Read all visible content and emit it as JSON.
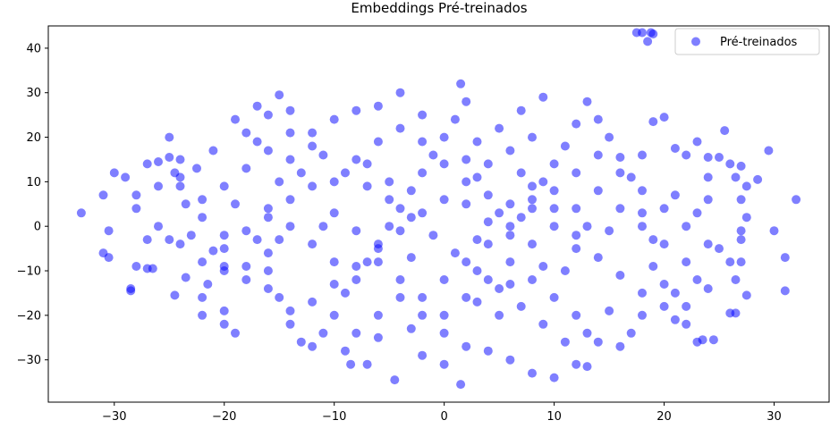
{
  "chart_data": {
    "type": "scatter",
    "title": "Embeddings Pré-treinados",
    "xlabel": "",
    "ylabel": "",
    "xlim": [
      -36,
      35
    ],
    "ylim": [
      -39.5,
      45
    ],
    "xticks": [
      -30,
      -20,
      -10,
      0,
      10,
      20,
      30
    ],
    "yticks": [
      -30,
      -20,
      -10,
      0,
      10,
      20,
      30,
      40
    ],
    "xtick_labels": [
      "−30",
      "−20",
      "−10",
      "0",
      "10",
      "20",
      "30"
    ],
    "ytick_labels": [
      "−30",
      "−20",
      "−10",
      "0",
      "10",
      "20",
      "30",
      "40"
    ],
    "grid": false,
    "legend_position": "top-right",
    "point_color": "#0000ff",
    "point_alpha": 0.5,
    "series": [
      {
        "name": "Pré-treinados",
        "points_note": "approximate sample of a dense cloud of ~1200 points",
        "points": [
          [
            -33,
            3
          ],
          [
            -31,
            7
          ],
          [
            -30,
            12
          ],
          [
            -29,
            11
          ],
          [
            -30.5,
            -1
          ],
          [
            -31,
            -6
          ],
          [
            -30.5,
            -7
          ],
          [
            -28.5,
            -14.5
          ],
          [
            -28.5,
            -14
          ],
          [
            -28,
            -9
          ],
          [
            -27,
            -9.5
          ],
          [
            -26.5,
            -9.5
          ],
          [
            -27,
            14
          ],
          [
            -26,
            14.5
          ],
          [
            -25,
            15.5
          ],
          [
            -24,
            15
          ],
          [
            -25,
            20
          ],
          [
            -24.5,
            12
          ],
          [
            -24,
            9
          ],
          [
            -23.5,
            5
          ],
          [
            -24,
            -4
          ],
          [
            -23.5,
            -11.5
          ],
          [
            -24.5,
            -15.5
          ],
          [
            -22,
            -16
          ],
          [
            -21.5,
            -13
          ],
          [
            -22,
            -20
          ],
          [
            -20,
            -19
          ],
          [
            -20,
            -22
          ],
          [
            -19,
            -24
          ],
          [
            -21,
            17
          ],
          [
            -22.5,
            13
          ],
          [
            -22,
            2
          ],
          [
            -21,
            -5.5
          ],
          [
            -20,
            -2
          ],
          [
            -19,
            5
          ],
          [
            -19,
            24
          ],
          [
            -18,
            21
          ],
          [
            -17,
            27
          ],
          [
            -16,
            25
          ],
          [
            -15,
            29.5
          ],
          [
            -14,
            26
          ],
          [
            -14,
            15
          ],
          [
            -15,
            10
          ],
          [
            -16,
            4
          ],
          [
            -17,
            -3
          ],
          [
            -16,
            -10
          ],
          [
            -15,
            -16
          ],
          [
            -14,
            -22
          ],
          [
            -13,
            -26
          ],
          [
            -12,
            -27
          ],
          [
            -11,
            -24
          ],
          [
            -10,
            -20
          ],
          [
            -9,
            -15
          ],
          [
            -8,
            -12
          ],
          [
            -7,
            -8
          ],
          [
            -6,
            -4
          ],
          [
            -5,
            0
          ],
          [
            -4,
            4
          ],
          [
            -3,
            8
          ],
          [
            -2,
            12
          ],
          [
            -1,
            16
          ],
          [
            0,
            20
          ],
          [
            1,
            24
          ],
          [
            2,
            28
          ],
          [
            1.5,
            32
          ],
          [
            -2,
            25
          ],
          [
            -4,
            30
          ],
          [
            -6,
            27
          ],
          [
            -8,
            26
          ],
          [
            -10,
            24
          ],
          [
            -12,
            21
          ],
          [
            -11,
            16
          ],
          [
            -9,
            12
          ],
          [
            -7,
            9
          ],
          [
            -5,
            6
          ],
          [
            -3,
            2
          ],
          [
            -1,
            -2
          ],
          [
            1,
            -6
          ],
          [
            3,
            -10
          ],
          [
            5,
            -14
          ],
          [
            7,
            -18
          ],
          [
            9,
            -22
          ],
          [
            11,
            -26
          ],
          [
            12,
            -31
          ],
          [
            13,
            -31.5
          ],
          [
            10,
            -34
          ],
          [
            8,
            -33
          ],
          [
            6,
            -30
          ],
          [
            4,
            -28
          ],
          [
            2,
            -27
          ],
          [
            1.5,
            -35.5
          ],
          [
            0,
            -31
          ],
          [
            -2,
            -29
          ],
          [
            -4.5,
            -34.5
          ],
          [
            -7,
            -31
          ],
          [
            -8.5,
            -31
          ],
          [
            -9,
            -28
          ],
          [
            -6,
            -25
          ],
          [
            -3,
            -23
          ],
          [
            0,
            -20
          ],
          [
            3,
            -17
          ],
          [
            6,
            -13
          ],
          [
            9,
            -9
          ],
          [
            12,
            -5
          ],
          [
            15,
            -1
          ],
          [
            18,
            3
          ],
          [
            21,
            7
          ],
          [
            24,
            11
          ],
          [
            26,
            14
          ],
          [
            27,
            13.5
          ],
          [
            27.5,
            9
          ],
          [
            28.5,
            10.5
          ],
          [
            29.5,
            17
          ],
          [
            25.5,
            21.5
          ],
          [
            27,
            6
          ],
          [
            27.5,
            2
          ],
          [
            27,
            -1
          ],
          [
            27,
            -3
          ],
          [
            26,
            -8
          ],
          [
            27,
            -8
          ],
          [
            26.5,
            -12
          ],
          [
            27.5,
            -15.5
          ],
          [
            26.5,
            -19.5
          ],
          [
            26,
            -19.5
          ],
          [
            24.5,
            -25.5
          ],
          [
            23.5,
            -25.5
          ],
          [
            23,
            -26
          ],
          [
            22,
            -18
          ],
          [
            21,
            -15
          ],
          [
            20,
            -13
          ],
          [
            19,
            -9
          ],
          [
            18,
            -20
          ],
          [
            17,
            -24
          ],
          [
            16,
            -27
          ],
          [
            14,
            -26
          ],
          [
            13,
            -24
          ],
          [
            12,
            -20
          ],
          [
            10,
            -16
          ],
          [
            8,
            -12
          ],
          [
            30,
            -1
          ],
          [
            31,
            -7
          ],
          [
            31,
            -14.5
          ],
          [
            32,
            6
          ],
          [
            22,
            16
          ],
          [
            21,
            17.5
          ],
          [
            20,
            24.5
          ],
          [
            19,
            23.5
          ],
          [
            18,
            16
          ],
          [
            17,
            11
          ],
          [
            16,
            15.5
          ],
          [
            15,
            20
          ],
          [
            14,
            24
          ],
          [
            13,
            28
          ],
          [
            12,
            23
          ],
          [
            11,
            18
          ],
          [
            10,
            14
          ],
          [
            9,
            10
          ],
          [
            8,
            6
          ],
          [
            7,
            2
          ],
          [
            6,
            -2
          ],
          [
            5,
            3
          ],
          [
            4,
            7
          ],
          [
            3,
            11
          ],
          [
            2,
            15
          ],
          [
            3,
            19
          ],
          [
            5,
            22
          ],
          [
            7,
            26
          ],
          [
            9,
            29
          ],
          [
            8,
            20
          ],
          [
            6,
            17
          ],
          [
            4,
            14
          ],
          [
            2,
            10
          ],
          [
            0,
            6
          ],
          [
            -2,
            3
          ],
          [
            -4,
            -1
          ],
          [
            -6,
            -5
          ],
          [
            -8,
            -9
          ],
          [
            -10,
            -13
          ],
          [
            -12,
            -17
          ],
          [
            -14,
            -19
          ],
          [
            -16,
            -14
          ],
          [
            -18,
            -9
          ],
          [
            -20,
            -5
          ],
          [
            -18,
            -1
          ],
          [
            -16,
            2
          ],
          [
            -14,
            6
          ],
          [
            -12,
            9
          ],
          [
            -10,
            3
          ],
          [
            -8,
            -1
          ],
          [
            -6,
            -8
          ],
          [
            -4,
            -12
          ],
          [
            -2,
            -16
          ],
          [
            0,
            -12
          ],
          [
            2,
            -8
          ],
          [
            4,
            -4
          ],
          [
            6,
            0
          ],
          [
            8,
            4
          ],
          [
            10,
            8
          ],
          [
            12,
            12
          ],
          [
            14,
            8
          ],
          [
            16,
            4
          ],
          [
            18,
            0
          ],
          [
            20,
            -4
          ],
          [
            22,
            -8
          ],
          [
            24,
            -4
          ],
          [
            22,
            0
          ],
          [
            20,
            4
          ],
          [
            18,
            8
          ],
          [
            16,
            12
          ],
          [
            14,
            16
          ],
          [
            12,
            4
          ],
          [
            10,
            0
          ],
          [
            8,
            -4
          ],
          [
            6,
            -8
          ],
          [
            4,
            -12
          ],
          [
            2,
            -16
          ],
          [
            0,
            -24
          ],
          [
            -2,
            -20
          ],
          [
            -4,
            -16
          ],
          [
            -6,
            -20
          ],
          [
            -8,
            -24
          ],
          [
            -10,
            -8
          ],
          [
            -12,
            -4
          ],
          [
            -14,
            0
          ],
          [
            -16,
            -6
          ],
          [
            -18,
            -12
          ],
          [
            -20,
            -10
          ],
          [
            -22,
            -8
          ],
          [
            -23,
            -2
          ],
          [
            -25,
            -3
          ],
          [
            -26,
            0
          ],
          [
            -27,
            -3
          ],
          [
            -28,
            4
          ],
          [
            -28,
            7
          ],
          [
            -26,
            9
          ],
          [
            -24,
            11
          ],
          [
            -22,
            6
          ],
          [
            -20,
            9
          ],
          [
            -18,
            13
          ],
          [
            -16,
            17
          ],
          [
            -14,
            21
          ],
          [
            -12,
            18
          ],
          [
            -10,
            10
          ],
          [
            -8,
            15
          ],
          [
            -6,
            19
          ],
          [
            -4,
            22
          ],
          [
            -2,
            19
          ],
          [
            0,
            14
          ],
          [
            2,
            5
          ],
          [
            4,
            1
          ],
          [
            6,
            5
          ],
          [
            8,
            9
          ],
          [
            10,
            4
          ],
          [
            12,
            -2
          ],
          [
            14,
            -7
          ],
          [
            16,
            -11
          ],
          [
            18,
            -15
          ],
          [
            20,
            -18
          ],
          [
            22,
            -22
          ],
          [
            17.5,
            43.5
          ],
          [
            18,
            43.5
          ],
          [
            18.5,
            41.5
          ],
          [
            18.8,
            43.5
          ],
          [
            19,
            43.2
          ],
          [
            -20,
            -9
          ],
          [
            -17,
            19
          ],
          [
            -5,
            10
          ],
          [
            5,
            -20
          ],
          [
            15,
            -19
          ],
          [
            23,
            19
          ],
          [
            24,
            15.5
          ],
          [
            25,
            15.5
          ],
          [
            26.5,
            11
          ],
          [
            24,
            6
          ],
          [
            23,
            3
          ],
          [
            25,
            -5
          ],
          [
            24,
            -14
          ],
          [
            23,
            -12
          ],
          [
            21,
            -21
          ],
          [
            -7,
            14
          ],
          [
            -3,
            -7
          ],
          [
            3,
            -3
          ],
          [
            7,
            12
          ],
          [
            11,
            -10
          ],
          [
            -11,
            0
          ],
          [
            -13,
            12
          ],
          [
            -15,
            -3
          ],
          [
            13,
            0
          ],
          [
            19,
            -3
          ]
        ]
      }
    ]
  }
}
